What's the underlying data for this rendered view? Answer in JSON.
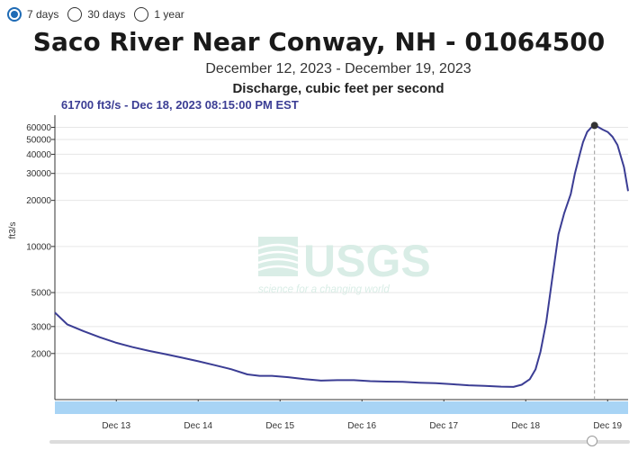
{
  "range_options": [
    {
      "label": "7 days",
      "selected": true
    },
    {
      "label": "30 days",
      "selected": false
    },
    {
      "label": "1 year",
      "selected": false
    }
  ],
  "title": "Saco River Near Conway, NH - 01064500",
  "date_range": "December 12, 2023 - December 19, 2023",
  "parameter": "Discharge, cubic feet per second",
  "tooltip": "61700 ft3/s - Dec 18, 2023 08:15:00 PM EST",
  "watermark": {
    "logo": "USGS",
    "tagline": "science for a changing world"
  },
  "colors": {
    "series": "#3b3d94",
    "brush": "#a8d4f5",
    "watermark": "#d9ede6"
  },
  "chart_data": {
    "type": "line",
    "title": "Saco River Near Conway, NH - 01064500",
    "subtitle": "December 12, 2023 - December 19, 2023",
    "ylabel": "ft3/s",
    "xlabel": "",
    "yscale": "log",
    "ylim": [
      1000,
      72000
    ],
    "xlim_days": [
      12.25,
      19.25
    ],
    "y_ticks": [
      {
        "value": 2000,
        "label": "2000"
      },
      {
        "value": 3000,
        "label": "3000"
      },
      {
        "value": 5000,
        "label": "5000"
      },
      {
        "value": 10000,
        "label": "10000"
      },
      {
        "value": 20000,
        "label": "20000"
      },
      {
        "value": 30000,
        "label": "30000"
      },
      {
        "value": 40000,
        "label": "40000"
      },
      {
        "value": 50000,
        "label": "50000"
      },
      {
        "value": 60000,
        "label": "60000"
      }
    ],
    "x_ticks": [
      {
        "day": 13,
        "label": "Dec 13"
      },
      {
        "day": 14,
        "label": "Dec 14"
      },
      {
        "day": 15,
        "label": "Dec 15"
      },
      {
        "day": 16,
        "label": "Dec 16"
      },
      {
        "day": 17,
        "label": "Dec 17"
      },
      {
        "day": 18,
        "label": "Dec 18"
      },
      {
        "day": 19,
        "label": "Dec 19"
      }
    ],
    "grid": true,
    "highlight": {
      "day": 18.84,
      "value": 61700
    },
    "series": [
      {
        "x": [
          12.25,
          12.4,
          12.6,
          12.8,
          13.0,
          13.2,
          13.4,
          13.6,
          13.8,
          14.0,
          14.2,
          14.4,
          14.6,
          14.75,
          14.9,
          15.1,
          15.3,
          15.5,
          15.7,
          15.9,
          16.1,
          16.3,
          16.5,
          16.7,
          16.9,
          17.1,
          17.3,
          17.5,
          17.7,
          17.85,
          17.95,
          18.05,
          18.12,
          18.18,
          18.25,
          18.32,
          18.4,
          18.47,
          18.55,
          18.6,
          18.66,
          18.7,
          18.75,
          18.8,
          18.84,
          18.88,
          18.94,
          19.0,
          19.06,
          19.12,
          19.2,
          19.25
        ],
        "y": [
          3700,
          3100,
          2800,
          2550,
          2350,
          2200,
          2080,
          1980,
          1880,
          1780,
          1680,
          1580,
          1460,
          1430,
          1430,
          1400,
          1360,
          1330,
          1340,
          1340,
          1320,
          1310,
          1305,
          1290,
          1280,
          1260,
          1240,
          1230,
          1215,
          1210,
          1250,
          1360,
          1580,
          2050,
          3200,
          6000,
          12000,
          16500,
          22000,
          30000,
          40000,
          48000,
          56000,
          60000,
          61700,
          60500,
          58000,
          56000,
          52000,
          46000,
          33000,
          23000
        ]
      }
    ]
  }
}
